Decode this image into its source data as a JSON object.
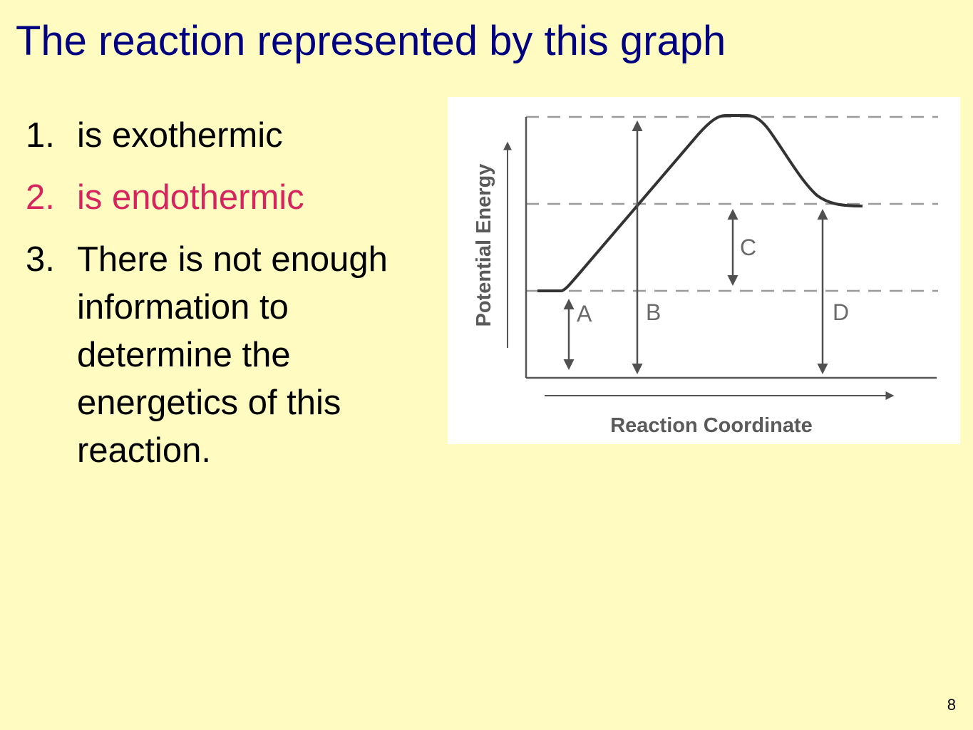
{
  "slide": {
    "title": "The reaction represented by this graph",
    "page_number": "8",
    "highlight_color": "#D6245F",
    "title_color": "#000080",
    "background_color": "#FFFBC1"
  },
  "answers": [
    {
      "number": "1.",
      "text": "is exothermic",
      "highlighted": false
    },
    {
      "number": "2.",
      "text": "is endothermic",
      "highlighted": true
    },
    {
      "number": "3.",
      "text": "There is not enough information to determine the energetics of this reaction.",
      "highlighted": false
    }
  ],
  "figure": {
    "y_axis_label": "Potential Energy",
    "x_axis_label": "Reaction Coordinate",
    "arrow_labels": {
      "a": "A",
      "b": "B",
      "c": "C",
      "d": "D"
    }
  }
}
